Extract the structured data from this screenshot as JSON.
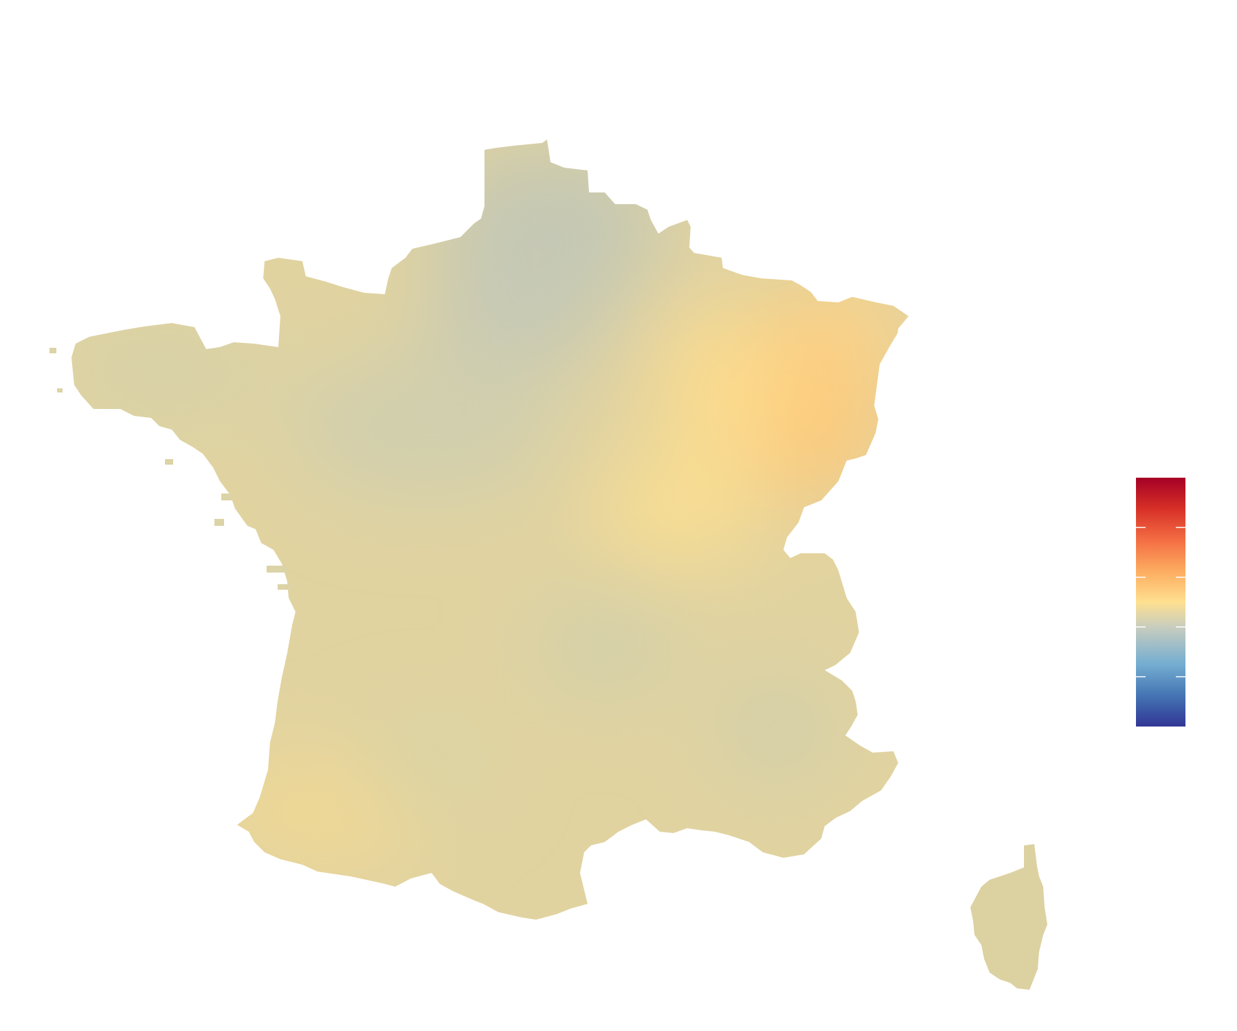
{
  "map": {
    "regions": [
      "france-mainland",
      "corsica"
    ],
    "legend": {
      "type": "continuous-colorbar",
      "orientation": "vertical",
      "placement": "right",
      "palette": [
        "#313695",
        "#4575b4",
        "#74add1",
        "#c8cdbe",
        "#fee090",
        "#fdae61",
        "#f46d43",
        "#d73027",
        "#a50026"
      ],
      "tick_count": 4,
      "tick_labels": []
    },
    "shading": {
      "dominant": "#e3d49c",
      "cool_patches": "#c5c9b7",
      "warm_patches": "#fdca7a"
    }
  }
}
